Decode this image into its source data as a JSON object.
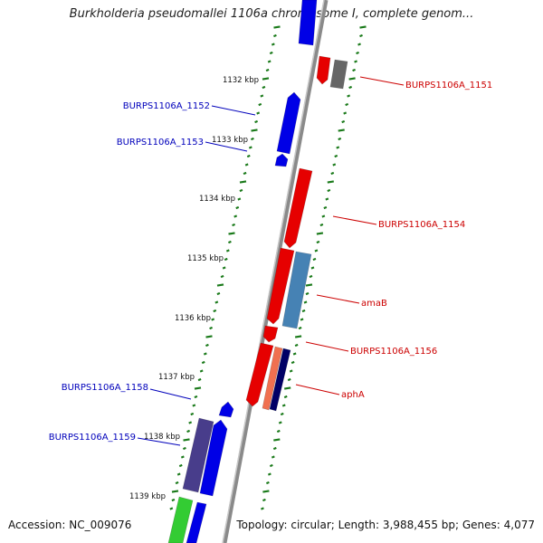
{
  "title": "Burkholderia pseudomallei 1106a chromosome I, complete genom...",
  "footer": {
    "accession": "Accession: NC_009076",
    "topology": "Topology: circular; Length: 3,988,455 bp; Genes: 4,077"
  },
  "colors": {
    "forward_cds": "#e60000",
    "reverse_cds": "#0000e6",
    "backbone": "#8a8a8a",
    "tick": "#1a7a1a",
    "forward_label": "#cc0000",
    "reverse_label": "#0000bb",
    "gray_feature": "#666666",
    "steel_feature": "#4682b4",
    "salmon_feature": "#f07050",
    "navy_feature": "#000066",
    "purple_feature": "#483d8b",
    "green_feature": "#33cc33"
  },
  "ruler_labels": [
    "1132 kbp",
    "1133 kbp",
    "1134 kbp",
    "1135 kbp",
    "1136 kbp",
    "1137 kbp",
    "1138 kbp",
    "1139 kbp"
  ],
  "gene_labels": [
    {
      "text": "BURPS1106A_1151",
      "strand": "forward"
    },
    {
      "text": "BURPS1106A_1152",
      "strand": "reverse"
    },
    {
      "text": "BURPS1106A_1153",
      "strand": "reverse"
    },
    {
      "text": "BURPS1106A_1154",
      "strand": "forward"
    },
    {
      "text": "amaB",
      "strand": "forward"
    },
    {
      "text": "BURPS1106A_1156",
      "strand": "forward"
    },
    {
      "text": "aphA",
      "strand": "forward"
    },
    {
      "text": "BURPS1106A_1158",
      "strand": "reverse"
    },
    {
      "text": "BURPS1106A_1159",
      "strand": "reverse"
    }
  ]
}
